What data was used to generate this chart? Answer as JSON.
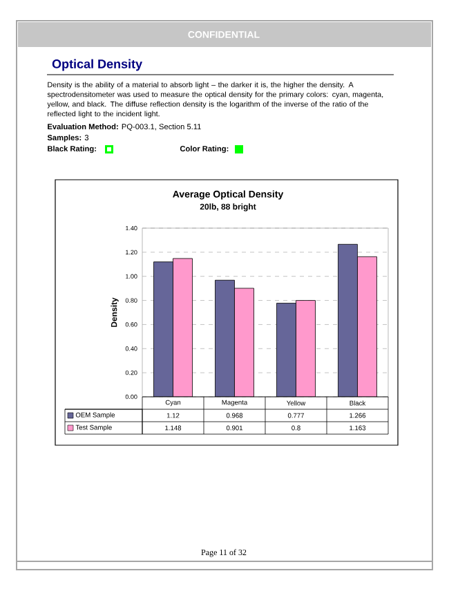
{
  "chart_data": {
    "type": "bar",
    "title": "Average Optical Density",
    "subtitle": "20lb, 88 bright",
    "ylabel": "Density",
    "categories": [
      "Cyan",
      "Magenta",
      "Yellow",
      "Black"
    ],
    "series": [
      {
        "name": "OEM Sample",
        "color": "#666699",
        "values": [
          1.12,
          0.968,
          0.777,
          1.266
        ]
      },
      {
        "name": "Test Sample",
        "color": "#ff99cc",
        "values": [
          1.148,
          0.901,
          0.8,
          1.163
        ]
      }
    ],
    "ylim": [
      0,
      1.4
    ],
    "yticks": [
      {
        "value": 0,
        "label": "0.00"
      },
      {
        "value": 0.2,
        "label": "0.20"
      },
      {
        "value": 0.4,
        "label": "0.40"
      },
      {
        "value": 0.6,
        "label": "0.60"
      },
      {
        "value": 0.8,
        "label": "0.80"
      },
      {
        "value": 1.0,
        "label": "1.00"
      },
      {
        "value": 1.2,
        "label": "1.20"
      },
      {
        "value": 1.4,
        "label": "1.40"
      }
    ],
    "grid": "y",
    "legend": "bottom",
    "data_labels": true,
    "annotations": [
      "CONFIDENTIAL",
      "Optical Density",
      "Density is the ability of a material to absorb light – the darker it is, the higher the density. A spectrodensitometer was used to measure the optical density for the primary colors: cyan, magenta, yellow, and black.  The diffuse reflection density is the logarithm of the inverse of the ratio of the reflected light to the incident light.",
      "**Evaluation Method:** PQ-003.1, Section 5.11",
      "**Samples:** 3",
      "**Black Rating:**",
      "**Color Rating:**",
      "Page 11 of 32"
    ]
  }
}
